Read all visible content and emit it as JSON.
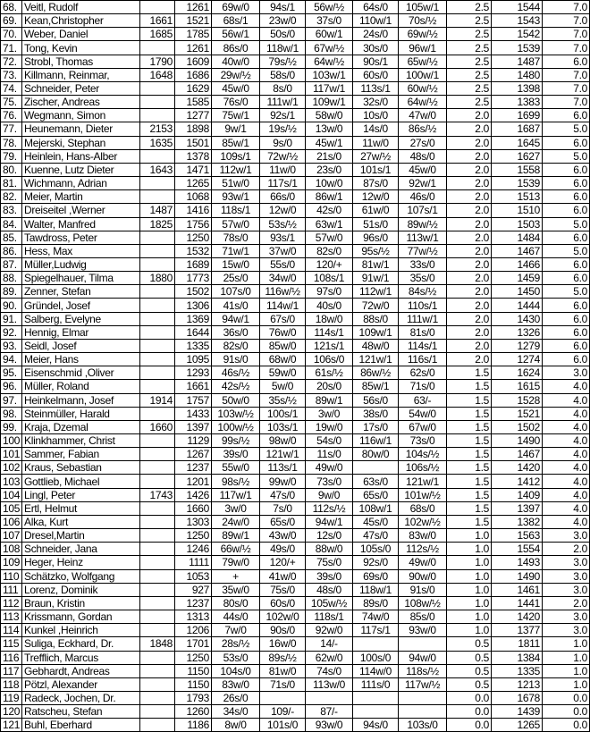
{
  "rows": [
    [
      "68.",
      "Veitl, Rudolf",
      "",
      "1261",
      "69w/0",
      "94s/1",
      "56w/½",
      "64s/0",
      "105w/1",
      "2.5",
      "1544",
      "7.0"
    ],
    [
      "69.",
      "Kean,Christopher",
      "1661",
      "1521",
      "68s/1",
      "23w/0",
      "37s/0",
      "110w/1",
      "70s/½",
      "2.5",
      "1543",
      "7.0"
    ],
    [
      "70.",
      "Weber, Daniel",
      "1685",
      "1785",
      "56w/1",
      "50s/0",
      "60w/1",
      "24s/0",
      "69w/½",
      "2.5",
      "1542",
      "7.0"
    ],
    [
      "71.",
      "Tong, Kevin",
      "",
      "1261",
      "86s/0",
      "118w/1",
      "67w/½",
      "30s/0",
      "96w/1",
      "2.5",
      "1539",
      "7.0"
    ],
    [
      "72.",
      "Strobl, Thomas",
      "1790",
      "1609",
      "40w/0",
      "79s/½",
      "64w/½",
      "90s/1",
      "65w/½",
      "2.5",
      "1487",
      "6.0"
    ],
    [
      "73.",
      "Killmann, Reinmar,",
      "1648",
      "1686",
      "29w/½",
      "58s/0",
      "103w/1",
      "60s/0",
      "100w/1",
      "2.5",
      "1480",
      "7.0"
    ],
    [
      "74.",
      "Schneider, Peter",
      "",
      "1629",
      "45w/0",
      "8s/0",
      "117w/1",
      "113s/1",
      "60w/½",
      "2.5",
      "1398",
      "7.0"
    ],
    [
      "75.",
      "Zischer, Andreas",
      "",
      "1585",
      "76s/0",
      "111w/1",
      "109w/1",
      "32s/0",
      "64w/½",
      "2.5",
      "1383",
      "7.0"
    ],
    [
      "76.",
      "Wegmann, Simon",
      "",
      "1277",
      "75w/1",
      "92s/1",
      "58w/0",
      "10s/0",
      "47w/0",
      "2.0",
      "1699",
      "6.0"
    ],
    [
      "77.",
      "Heunemann, Dieter",
      "2153",
      "1898",
      "9w/1",
      "19s/½",
      "13w/0",
      "14s/0",
      "86s/½",
      "2.0",
      "1687",
      "5.0"
    ],
    [
      "78.",
      "Mejerski, Stephan",
      "1635",
      "1501",
      "85w/1",
      "9s/0",
      "45w/1",
      "11w/0",
      "27s/0",
      "2.0",
      "1645",
      "6.0"
    ],
    [
      "79.",
      "Heinlein, Hans-Alber",
      "",
      "1378",
      "109s/1",
      "72w/½",
      "21s/0",
      "27w/½",
      "48s/0",
      "2.0",
      "1627",
      "5.0"
    ],
    [
      "80.",
      "Kuenne, Lutz  Dieter",
      "1643",
      "1471",
      "112w/1",
      "11w/0",
      "23s/0",
      "101s/1",
      "45w/0",
      "2.0",
      "1558",
      "6.0"
    ],
    [
      "81.",
      "Wichmann, Adrian",
      "",
      "1265",
      "51w/0",
      "117s/1",
      "10w/0",
      "87s/0",
      "92w/1",
      "2.0",
      "1539",
      "6.0"
    ],
    [
      "82.",
      "Meier, Martin",
      "",
      "1068",
      "93w/1",
      "66s/0",
      "86w/1",
      "12w/0",
      "46s/0",
      "2.0",
      "1513",
      "6.0"
    ],
    [
      "83.",
      "Dreiseitel ,Werner",
      "1487",
      "1416",
      "118s/1",
      "12w/0",
      "42s/0",
      "61w/0",
      "107s/1",
      "2.0",
      "1510",
      "6.0"
    ],
    [
      "84.",
      "Walter, Manfred",
      "1825",
      "1756",
      "57w/0",
      "53s/½",
      "63w/1",
      "51s/0",
      "89w/½",
      "2.0",
      "1503",
      "5.0"
    ],
    [
      "85.",
      "Tawdross, Peter",
      "",
      "1250",
      "78s/0",
      "93s/1",
      "57w/0",
      "96s/0",
      "113w/1",
      "2.0",
      "1484",
      "6.0"
    ],
    [
      "86.",
      "Hess, Max",
      "",
      "1532",
      "71w/1",
      "37w/0",
      "82s/0",
      "95s/½",
      "77w/½",
      "2.0",
      "1467",
      "5.0"
    ],
    [
      "87.",
      "Müller,Ludwig",
      "",
      "1689",
      "15w/0",
      "55s/0",
      "120/+",
      "81w/1",
      "33s/0",
      "2.0",
      "1466",
      "6.0"
    ],
    [
      "88.",
      "Spiegelhauer, Tilma",
      "1880",
      "1773",
      "25s/0",
      "34w/0",
      "108s/1",
      "91w/1",
      "35s/0",
      "2.0",
      "1459",
      "6.0"
    ],
    [
      "89.",
      "Zenner, Stefan",
      "",
      "1502",
      "107s/0",
      "116w/½",
      "97s/0",
      "112w/1",
      "84s/½",
      "2.0",
      "1450",
      "5.0"
    ],
    [
      "90.",
      "Gründel, Josef",
      "",
      "1306",
      "41s/0",
      "114w/1",
      "40s/0",
      "72w/0",
      "110s/1",
      "2.0",
      "1444",
      "6.0"
    ],
    [
      "91.",
      "Salberg, Evelyne",
      "",
      "1369",
      "94w/1",
      "67s/0",
      "18w/0",
      "88s/0",
      "111w/1",
      "2.0",
      "1430",
      "6.0"
    ],
    [
      "92.",
      "Hennig, Elmar",
      "",
      "1644",
      "36s/0",
      "76w/0",
      "114s/1",
      "109w/1",
      "81s/0",
      "2.0",
      "1326",
      "6.0"
    ],
    [
      "93.",
      "Seidl, Josef",
      "",
      "1335",
      "82s/0",
      "85w/0",
      "121s/1",
      "48w/0",
      "114s/1",
      "2.0",
      "1279",
      "6.0"
    ],
    [
      "94.",
      "Meier, Hans",
      "",
      "1095",
      "91s/0",
      "68w/0",
      "106s/0",
      "121w/1",
      "116s/1",
      "2.0",
      "1274",
      "6.0"
    ],
    [
      "95.",
      "Eisenschmid ,Oliver",
      "",
      "1293",
      "46s/½",
      "59w/0",
      "61s/½",
      "86w/½",
      "62s/0",
      "1.5",
      "1624",
      "3.0"
    ],
    [
      "96.",
      "Müller, Roland",
      "",
      "1661",
      "42s/½",
      "5w/0",
      "20s/0",
      "85w/1",
      "71s/0",
      "1.5",
      "1615",
      "4.0"
    ],
    [
      "97.",
      "Heinkelmann, Josef",
      "1914",
      "1757",
      "50w/0",
      "35s/½",
      "89w/1",
      "56s/0",
      "63/-",
      "1.5",
      "1528",
      "4.0"
    ],
    [
      "98.",
      "Steinmüller, Harald",
      "",
      "1433",
      "103w/½",
      "100s/1",
      "3w/0",
      "38s/0",
      "54w/0",
      "1.5",
      "1521",
      "4.0"
    ],
    [
      "99.",
      "Kraja, Dzemal",
      "1660",
      "1397",
      "100w/½",
      "103s/1",
      "19w/0",
      "17s/0",
      "67w/0",
      "1.5",
      "1502",
      "4.0"
    ],
    [
      "100",
      "Klinkhammer, Christ",
      "",
      "1129",
      "99s/½",
      "98w/0",
      "54s/0",
      "116w/1",
      "73s/0",
      "1.5",
      "1490",
      "4.0"
    ],
    [
      "101",
      "Sammer, Fabian",
      "",
      "1267",
      "39s/0",
      "121w/1",
      "11s/0",
      "80w/0",
      "104s/½",
      "1.5",
      "1467",
      "4.0"
    ],
    [
      "102",
      "Kraus, Sebastian",
      "",
      "1237",
      "55w/0",
      "113s/1",
      "49w/0",
      "",
      "106s/½",
      "1.5",
      "1420",
      "4.0"
    ],
    [
      "103",
      "Gottlieb, Michael",
      "",
      "1201",
      "98s/½",
      "99w/0",
      "73s/0",
      "63s/0",
      "121w/1",
      "1.5",
      "1412",
      "4.0"
    ],
    [
      "104",
      "Lingl, Peter",
      "1743",
      "1426",
      "117w/1",
      "47s/0",
      "9w/0",
      "65s/0",
      "101w/½",
      "1.5",
      "1409",
      "4.0"
    ],
    [
      "105",
      "Ertl, Helmut",
      "",
      "1660",
      "3w/0",
      "7s/0",
      "112s/½",
      "108w/1",
      "68s/0",
      "1.5",
      "1397",
      "4.0"
    ],
    [
      "106",
      "Alka, Kurt",
      "",
      "1303",
      "24w/0",
      "65s/0",
      "94w/1",
      "45s/0",
      "102w/½",
      "1.5",
      "1382",
      "4.0"
    ],
    [
      "107",
      "Dresel,Martin",
      "",
      "1250",
      "89w/1",
      "43w/0",
      "12s/0",
      "47s/0",
      "83w/0",
      "1.0",
      "1563",
      "3.0"
    ],
    [
      "108",
      "Schneider, Jana",
      "",
      "1246",
      "66w/½",
      "49s/0",
      "88w/0",
      "105s/0",
      "112s/½",
      "1.0",
      "1554",
      "2.0"
    ],
    [
      "109",
      "Heger, Heinz",
      "",
      "1111",
      "79w/0",
      "120/+",
      "75s/0",
      "92s/0",
      "49w/0",
      "1.0",
      "1493",
      "3.0"
    ],
    [
      "110",
      "Schätzko, Wolfgang",
      "",
      "1053",
      "+",
      "41w/0",
      "39s/0",
      "69s/0",
      "90w/0",
      "1.0",
      "1490",
      "3.0"
    ],
    [
      "111",
      "Lorenz, Dominik",
      "",
      "927",
      "35w/0",
      "75s/0",
      "48s/0",
      "118w/1",
      "91s/0",
      "1.0",
      "1461",
      "3.0"
    ],
    [
      "112",
      "Braun, Kristin",
      "",
      "1237",
      "80s/0",
      "60s/0",
      "105w/½",
      "89s/0",
      "108w/½",
      "1.0",
      "1441",
      "2.0"
    ],
    [
      "113",
      "Krissmann, Gordan",
      "",
      "1313",
      "44s/0",
      "102w/0",
      "118s/1",
      "74w/0",
      "85s/0",
      "1.0",
      "1420",
      "3.0"
    ],
    [
      "114",
      "Kunkel ,Heinrich",
      "",
      "1206",
      "7w/0",
      "90s/0",
      "92w/0",
      "117s/1",
      "93w/0",
      "1.0",
      "1377",
      "3.0"
    ],
    [
      "115",
      "Suliga, Eckhard, Dr.",
      "1848",
      "1701",
      "28s/½",
      "16w/0",
      "14/-",
      "",
      "",
      "0.5",
      "1811",
      "1.0"
    ],
    [
      "116",
      "Trefflich, Marcus",
      "",
      "1250",
      "53s/0",
      "89s/½",
      "62w/0",
      "100s/0",
      "94w/0",
      "0.5",
      "1384",
      "1.0"
    ],
    [
      "117",
      "Gebhardt, Andreas",
      "",
      "1150",
      "104s/0",
      "81w/0",
      "74s/0",
      "114w/0",
      "118s/½",
      "0.5",
      "1335",
      "1.0"
    ],
    [
      "118",
      "Pötzl, Alexander",
      "",
      "1150",
      "83w/0",
      "71s/0",
      "113w/0",
      "111s/0",
      "117w/½",
      "0.5",
      "1213",
      "1.0"
    ],
    [
      "119",
      "Radeck, Jochen, Dr.",
      "",
      "1793",
      "26s/0",
      "",
      "",
      "",
      "",
      "0.0",
      "1678",
      "0.0"
    ],
    [
      "120",
      "Ratscheu, Stefan",
      "",
      "1260",
      "34s/0",
      "109/-",
      "87/-",
      "",
      "",
      "0.0",
      "1439",
      "0.0"
    ],
    [
      "121",
      "Buhl, Eberhard",
      "",
      "1186",
      "8w/0",
      "101s/0",
      "93w/0",
      "94s/0",
      "103s/0",
      "0.0",
      "1265",
      "0.0"
    ]
  ]
}
